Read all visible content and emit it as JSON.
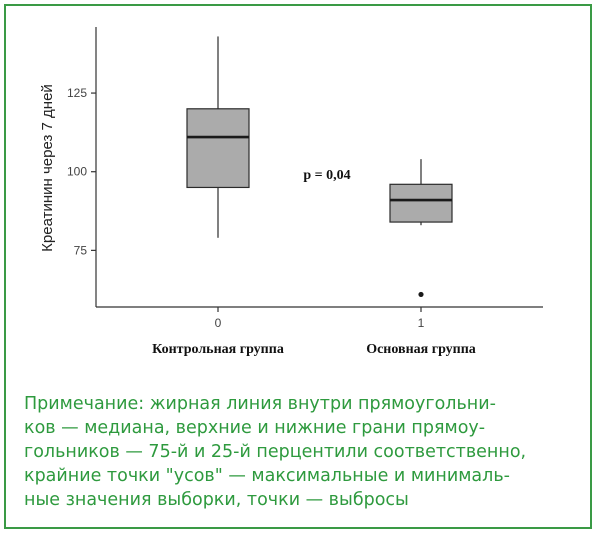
{
  "chart_data": {
    "type": "boxplot",
    "title": "",
    "xlabel": "",
    "ylabel": "Креатинин через 7 дней",
    "ylim": [
      57,
      146
    ],
    "yticks": [
      75,
      100,
      125
    ],
    "categories": [
      "0",
      "1"
    ],
    "group_labels": [
      "Контрольная группа",
      "Основная группа"
    ],
    "boxes": [
      {
        "category": "0",
        "min": 79,
        "q1": 95,
        "median": 111,
        "q3": 120,
        "max": 143,
        "outliers": []
      },
      {
        "category": "1",
        "min": 83,
        "q1": 84,
        "median": 91,
        "q3": 96,
        "max": 104,
        "outliers": [
          61
        ]
      }
    ],
    "annotation": "p = 0,04",
    "colors": {
      "box_fill": "#ababab",
      "stroke": "#2b2b2b"
    },
    "grid": false
  },
  "note": {
    "lines": [
      "Примечание: жирная линия внутри прямоугольни-",
      "ков — медиана, верхние и нижние грани прямоу-",
      "гольников — 75-й и 25-й перцентили соответственно,",
      "крайние точки \"усов\" — максимальные и минималь-",
      "ные значения выборки, точки — выбросы"
    ],
    "color": "#2e9a3e"
  }
}
